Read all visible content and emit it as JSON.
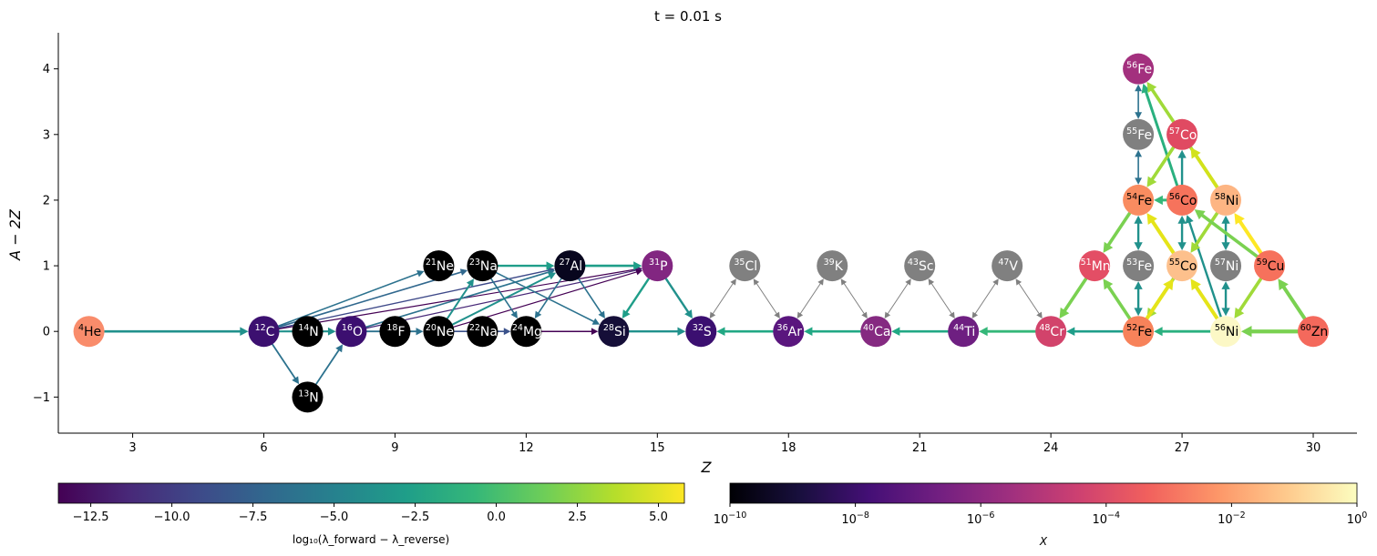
{
  "title": "t = 0.01 s",
  "chart_data": {
    "type": "network",
    "xlabel": "Z",
    "ylabel": "A − 2Z",
    "xlim": [
      1.3,
      31.0
    ],
    "ylim": [
      -1.55,
      4.55
    ],
    "xticks": [
      3,
      6,
      9,
      12,
      15,
      18,
      21,
      24,
      27,
      30
    ],
    "yticks": [
      -1,
      0,
      1,
      2,
      3,
      4
    ],
    "nodes": [
      {
        "mass": "4",
        "el": "He",
        "z": 2,
        "n": 0,
        "color": "#f98c6b",
        "text": "#000000"
      },
      {
        "mass": "12",
        "el": "C",
        "z": 6,
        "n": 0,
        "color": "#3c1070",
        "text": "#ffffff"
      },
      {
        "mass": "13",
        "el": "N",
        "z": 7,
        "n": -1,
        "color": "#000000",
        "text": "#ffffff"
      },
      {
        "mass": "14",
        "el": "N",
        "z": 7,
        "n": 0,
        "color": "#000000",
        "text": "#ffffff"
      },
      {
        "mass": "16",
        "el": "O",
        "z": 8,
        "n": 0,
        "color": "#3c0f70",
        "text": "#ffffff"
      },
      {
        "mass": "18",
        "el": "F",
        "z": 9,
        "n": 0,
        "color": "#000000",
        "text": "#ffffff"
      },
      {
        "mass": "20",
        "el": "Ne",
        "z": 10,
        "n": 0,
        "color": "#000000",
        "text": "#ffffff"
      },
      {
        "mass": "21",
        "el": "Ne",
        "z": 10,
        "n": 1,
        "color": "#000000",
        "text": "#ffffff"
      },
      {
        "mass": "22",
        "el": "Na",
        "z": 11,
        "n": 0,
        "color": "#000000",
        "text": "#ffffff"
      },
      {
        "mass": "23",
        "el": "Na",
        "z": 11,
        "n": 1,
        "color": "#000000",
        "text": "#ffffff"
      },
      {
        "mass": "24",
        "el": "Mg",
        "z": 12,
        "n": 0,
        "color": "#000000",
        "text": "#ffffff"
      },
      {
        "mass": "27",
        "el": "Al",
        "z": 13,
        "n": 1,
        "color": "#08061e",
        "text": "#ffffff"
      },
      {
        "mass": "28",
        "el": "Si",
        "z": 14,
        "n": 0,
        "color": "#150e38",
        "text": "#ffffff"
      },
      {
        "mass": "31",
        "el": "P",
        "z": 15,
        "n": 1,
        "color": "#822681",
        "text": "#ffffff"
      },
      {
        "mass": "32",
        "el": "S",
        "z": 16,
        "n": 0,
        "color": "#3b0f70",
        "text": "#ffffff"
      },
      {
        "mass": "35",
        "el": "Cl",
        "z": 17,
        "n": 1,
        "color": "#808080",
        "text": "#ffffff"
      },
      {
        "mass": "36",
        "el": "Ar",
        "z": 18,
        "n": 0,
        "color": "#5a167e",
        "text": "#ffffff"
      },
      {
        "mass": "39",
        "el": "K",
        "z": 19,
        "n": 1,
        "color": "#808080",
        "text": "#ffffff"
      },
      {
        "mass": "40",
        "el": "Ca",
        "z": 20,
        "n": 0,
        "color": "#852a81",
        "text": "#ffffff"
      },
      {
        "mass": "43",
        "el": "Sc",
        "z": 21,
        "n": 1,
        "color": "#808080",
        "text": "#ffffff"
      },
      {
        "mass": "44",
        "el": "Ti",
        "z": 22,
        "n": 0,
        "color": "#6e1f81",
        "text": "#ffffff"
      },
      {
        "mass": "47",
        "el": "V",
        "z": 23,
        "n": 1,
        "color": "#808080",
        "text": "#ffffff"
      },
      {
        "mass": "48",
        "el": "Cr",
        "z": 24,
        "n": 0,
        "color": "#d2436b",
        "text": "#ffffff"
      },
      {
        "mass": "51",
        "el": "Mn",
        "z": 25,
        "n": 1,
        "color": "#e34e65",
        "text": "#ffffff"
      },
      {
        "mass": "52",
        "el": "Fe",
        "z": 26,
        "n": 0,
        "color": "#f7825a",
        "text": "#000000"
      },
      {
        "mass": "53",
        "el": "Fe",
        "z": 26,
        "n": 1,
        "color": "#808080",
        "text": "#ffffff"
      },
      {
        "mass": "54",
        "el": "Fe",
        "z": 26,
        "n": 2,
        "color": "#f98c60",
        "text": "#000000"
      },
      {
        "mass": "55",
        "el": "Fe",
        "z": 26,
        "n": 3,
        "color": "#808080",
        "text": "#ffffff"
      },
      {
        "mass": "56",
        "el": "Fe",
        "z": 26,
        "n": 4,
        "color": "#a3307e",
        "text": "#ffffff"
      },
      {
        "mass": "55",
        "el": "Co",
        "z": 27,
        "n": 1,
        "color": "#fdc08c",
        "text": "#000000"
      },
      {
        "mass": "56",
        "el": "Co",
        "z": 27,
        "n": 2,
        "color": "#f6735c",
        "text": "#000000"
      },
      {
        "mass": "57",
        "el": "Co",
        "z": 27,
        "n": 3,
        "color": "#e04a62",
        "text": "#ffffff"
      },
      {
        "mass": "56",
        "el": "Ni",
        "z": 28,
        "n": 0,
        "color": "#fcf8c6",
        "text": "#000000"
      },
      {
        "mass": "57",
        "el": "Ni",
        "z": 28,
        "n": 1,
        "color": "#808080",
        "text": "#ffffff"
      },
      {
        "mass": "58",
        "el": "Ni",
        "z": 28,
        "n": 2,
        "color": "#fdb583",
        "text": "#000000"
      },
      {
        "mass": "59",
        "el": "Cu",
        "z": 29,
        "n": 1,
        "color": "#f6715c",
        "text": "#000000"
      },
      {
        "mass": "60",
        "el": "Zn",
        "z": 30,
        "n": 0,
        "color": "#f4695c",
        "text": "#000000"
      }
    ],
    "links": [
      {
        "from": [
          2,
          0
        ],
        "to": [
          6,
          0
        ],
        "color": "#21918c",
        "w": 2.6
      },
      {
        "from": [
          6,
          0
        ],
        "to": [
          7,
          -1
        ],
        "color": "#2c728e",
        "w": 1.8
      },
      {
        "from": [
          7,
          -1
        ],
        "to": [
          8,
          0
        ],
        "color": "#2c728e",
        "w": 1.8
      },
      {
        "from": [
          6,
          0
        ],
        "to": [
          8,
          0
        ],
        "color": "#21918c",
        "w": 2.2
      },
      {
        "from": [
          8,
          0
        ],
        "to": [
          10,
          0
        ],
        "color": "#2c728e",
        "w": 1.8
      },
      {
        "from": [
          10,
          0
        ],
        "to": [
          12,
          0
        ],
        "color": "#3b528b",
        "w": 1.6
      },
      {
        "from": [
          12,
          0
        ],
        "to": [
          14,
          0
        ],
        "color": "#440154",
        "w": 1.5
      },
      {
        "from": [
          14,
          0
        ],
        "to": [
          16,
          0
        ],
        "color": "#21918c",
        "w": 2.4
      },
      {
        "from": [
          6,
          0
        ],
        "to": [
          10,
          1
        ],
        "color": "#2c728e",
        "w": 1.6
      },
      {
        "from": [
          6,
          0
        ],
        "to": [
          11,
          1
        ],
        "color": "#31688e",
        "w": 1.6
      },
      {
        "from": [
          6,
          0
        ],
        "to": [
          13,
          1
        ],
        "color": "#3e4989",
        "w": 1.4
      },
      {
        "from": [
          6,
          0
        ],
        "to": [
          15,
          1
        ],
        "color": "#440154",
        "w": 1.2
      },
      {
        "from": [
          8,
          0
        ],
        "to": [
          13,
          1
        ],
        "color": "#2c728e",
        "w": 1.6
      },
      {
        "from": [
          8,
          0
        ],
        "to": [
          15,
          1
        ],
        "color": "#482878",
        "w": 1.2
      },
      {
        "from": [
          10,
          0
        ],
        "to": [
          11,
          1
        ],
        "color": "#21918c",
        "w": 2.0
      },
      {
        "from": [
          10,
          0
        ],
        "to": [
          13,
          1
        ],
        "color": "#21918c",
        "w": 2.0
      },
      {
        "from": [
          10,
          0
        ],
        "to": [
          15,
          1
        ],
        "color": "#440154",
        "w": 1.2
      },
      {
        "from": [
          11,
          1
        ],
        "to": [
          12,
          0
        ],
        "color": "#2c728e",
        "w": 1.6
      },
      {
        "from": [
          11,
          1
        ],
        "to": [
          13,
          1
        ],
        "color": "#1f9e89",
        "w": 2.4
      },
      {
        "from": [
          11,
          1
        ],
        "to": [
          14,
          0
        ],
        "color": "#2c728e",
        "w": 1.6
      },
      {
        "from": [
          13,
          1
        ],
        "to": [
          12,
          0
        ],
        "color": "#2c728e",
        "w": 1.6
      },
      {
        "from": [
          13,
          1
        ],
        "to": [
          14,
          0
        ],
        "color": "#2c728e",
        "w": 1.6
      },
      {
        "from": [
          13,
          1
        ],
        "to": [
          15,
          1
        ],
        "color": "#1f9e89",
        "w": 2.6
      },
      {
        "from": [
          15,
          1
        ],
        "to": [
          14,
          0
        ],
        "color": "#1f9e89",
        "w": 2.4
      },
      {
        "from": [
          15,
          1
        ],
        "to": [
          16,
          0
        ],
        "color": "#21918c",
        "w": 2.4
      },
      {
        "from": [
          18,
          0
        ],
        "to": [
          16,
          0
        ],
        "color": "#22a884",
        "w": 2.6
      },
      {
        "from": [
          20,
          0
        ],
        "to": [
          18,
          0
        ],
        "color": "#22a884",
        "w": 2.6
      },
      {
        "from": [
          22,
          0
        ],
        "to": [
          20,
          0
        ],
        "color": "#22a884",
        "w": 2.6
      },
      {
        "from": [
          24,
          0
        ],
        "to": [
          22,
          0
        ],
        "color": "#35b779",
        "w": 2.8
      },
      {
        "from": [
          26,
          0
        ],
        "to": [
          24,
          0
        ],
        "color": "#1f9e89",
        "w": 2.6
      },
      {
        "from": [
          28,
          0
        ],
        "to": [
          26,
          0
        ],
        "color": "#2ab07f",
        "w": 2.8
      },
      {
        "from": [
          30,
          0
        ],
        "to": [
          28,
          0
        ],
        "color": "#7ad151",
        "w": 4.0
      },
      {
        "from": [
          16,
          0
        ],
        "to": [
          17,
          1
        ],
        "color": "#808080",
        "w": 1.0,
        "both": true
      },
      {
        "from": [
          17,
          1
        ],
        "to": [
          18,
          0
        ],
        "color": "#808080",
        "w": 1.0,
        "both": true
      },
      {
        "from": [
          18,
          0
        ],
        "to": [
          19,
          1
        ],
        "color": "#808080",
        "w": 1.0,
        "both": true
      },
      {
        "from": [
          19,
          1
        ],
        "to": [
          20,
          0
        ],
        "color": "#808080",
        "w": 1.0,
        "both": true
      },
      {
        "from": [
          20,
          0
        ],
        "to": [
          21,
          1
        ],
        "color": "#808080",
        "w": 1.0,
        "both": true
      },
      {
        "from": [
          21,
          1
        ],
        "to": [
          22,
          0
        ],
        "color": "#808080",
        "w": 1.0,
        "both": true
      },
      {
        "from": [
          22,
          0
        ],
        "to": [
          23,
          1
        ],
        "color": "#808080",
        "w": 1.0,
        "both": true
      },
      {
        "from": [
          23,
          1
        ],
        "to": [
          24,
          0
        ],
        "color": "#808080",
        "w": 1.0,
        "both": true
      },
      {
        "from": [
          25,
          1
        ],
        "to": [
          24,
          0
        ],
        "color": "#7ad151",
        "w": 3.6
      },
      {
        "from": [
          26,
          2
        ],
        "to": [
          25,
          1
        ],
        "color": "#7ad151",
        "w": 3.6
      },
      {
        "from": [
          26,
          0
        ],
        "to": [
          25,
          1
        ],
        "color": "#7ad151",
        "w": 3.6
      },
      {
        "from": [
          26,
          0
        ],
        "to": [
          26,
          1
        ],
        "color": "#21918c",
        "w": 2.4,
        "both": true
      },
      {
        "from": [
          26,
          1
        ],
        "to": [
          26,
          2
        ],
        "color": "#21918c",
        "w": 2.4,
        "both": true
      },
      {
        "from": [
          26,
          2
        ],
        "to": [
          26,
          3
        ],
        "color": "#2c728e",
        "w": 1.6,
        "both": true
      },
      {
        "from": [
          26,
          3
        ],
        "to": [
          26,
          4
        ],
        "color": "#2c728e",
        "w": 1.6,
        "both": true
      },
      {
        "from": [
          27,
          2
        ],
        "to": [
          26,
          2
        ],
        "color": "#35b779",
        "w": 3.0
      },
      {
        "from": [
          27,
          1
        ],
        "to": [
          27,
          2
        ],
        "color": "#21918c",
        "w": 2.4,
        "both": true
      },
      {
        "from": [
          27,
          2
        ],
        "to": [
          27,
          3
        ],
        "color": "#21918c",
        "w": 2.4
      },
      {
        "from": [
          27,
          2
        ],
        "to": [
          26,
          4
        ],
        "color": "#2ab07f",
        "w": 3.0
      },
      {
        "from": [
          27,
          3
        ],
        "to": [
          26,
          2
        ],
        "color": "#a0da39",
        "w": 3.6
      },
      {
        "from": [
          28,
          2
        ],
        "to": [
          26,
          4
        ],
        "color": "#a0da39",
        "w": 3.6
      },
      {
        "from": [
          28,
          0
        ],
        "to": [
          27,
          1
        ],
        "color": "#e5e419",
        "w": 4.0
      },
      {
        "from": [
          27,
          1
        ],
        "to": [
          26,
          0
        ],
        "color": "#a0da39",
        "w": 3.6
      },
      {
        "from": [
          26,
          0
        ],
        "to": [
          27,
          1
        ],
        "color": "#e5e419",
        "w": 4.0
      },
      {
        "from": [
          28,
          0
        ],
        "to": [
          27,
          2
        ],
        "color": "#21918c",
        "w": 2.4
      },
      {
        "from": [
          28,
          0
        ],
        "to": [
          28,
          1
        ],
        "color": "#21918c",
        "w": 2.4,
        "both": true
      },
      {
        "from": [
          28,
          1
        ],
        "to": [
          28,
          2
        ],
        "color": "#21918c",
        "w": 2.4,
        "both": true
      },
      {
        "from": [
          28,
          2
        ],
        "to": [
          27,
          1
        ],
        "color": "#a0da39",
        "w": 3.6
      },
      {
        "from": [
          28,
          2
        ],
        "to": [
          27,
          3
        ],
        "color": "#d2e21b",
        "w": 3.8
      },
      {
        "from": [
          27,
          1
        ],
        "to": [
          26,
          2
        ],
        "color": "#e5e419",
        "w": 4.0
      },
      {
        "from": [
          29,
          1
        ],
        "to": [
          28,
          2
        ],
        "color": "#fde725",
        "w": 4.0
      },
      {
        "from": [
          29,
          1
        ],
        "to": [
          27,
          2
        ],
        "color": "#7ad151",
        "w": 3.6
      },
      {
        "from": [
          29,
          1
        ],
        "to": [
          28,
          0
        ],
        "color": "#a0da39",
        "w": 3.6
      },
      {
        "from": [
          30,
          0
        ],
        "to": [
          29,
          1
        ],
        "color": "#7ad151",
        "w": 4.0
      },
      {
        "from": [
          30,
          0
        ],
        "to": [
          28,
          0
        ],
        "color": "#7ad151",
        "w": 4.0
      }
    ],
    "colorbar_rates": {
      "label": "log₁₀(λ_forward − λ_reverse)",
      "min": -13.5,
      "max": 5.8,
      "ticks": [
        "−12.5",
        "−10.0",
        "−7.5",
        "−5.0",
        "−2.5",
        "0.0",
        "2.5",
        "5.0"
      ],
      "tick_values": [
        -12.5,
        -10,
        -7.5,
        -5,
        -2.5,
        0,
        2.5,
        5
      ]
    },
    "colorbar_abundance": {
      "label": "X",
      "min_exp": -10,
      "max_exp": 0,
      "ticks": [
        "10",
        "10",
        "10",
        "10",
        "10",
        "10"
      ],
      "tick_exps": [
        "−10",
        "−8",
        "−6",
        "−4",
        "−2",
        "0"
      ],
      "tick_values": [
        -10,
        -8,
        -6,
        -4,
        -2,
        0
      ]
    }
  }
}
